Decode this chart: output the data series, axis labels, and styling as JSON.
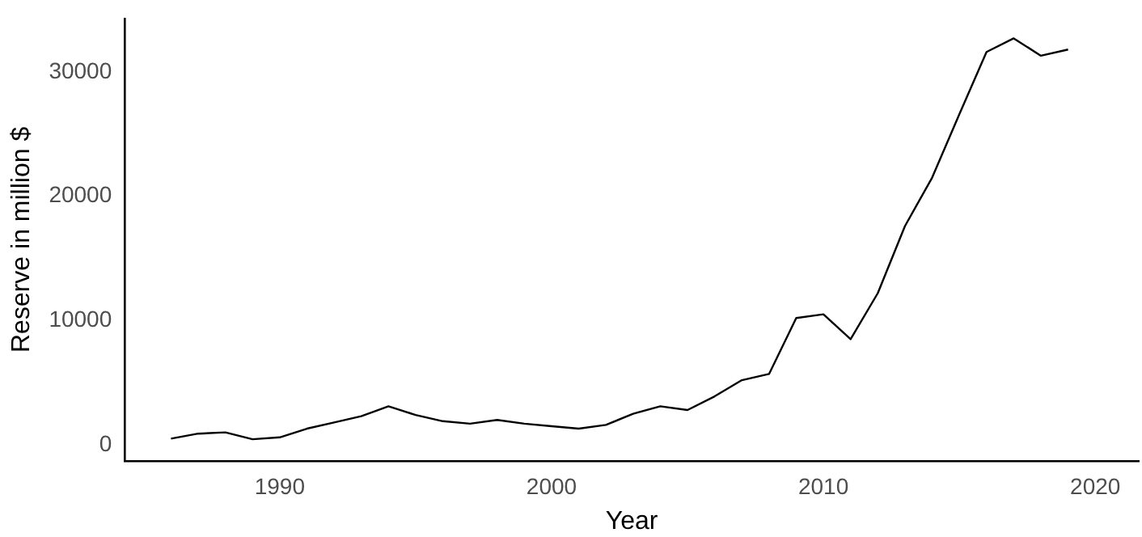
{
  "chart_data": {
    "type": "line",
    "xlabel": "Year",
    "ylabel": "Reserve in million $",
    "x": [
      1986,
      1987,
      1988,
      1989,
      1990,
      1991,
      1992,
      1993,
      1994,
      1995,
      1996,
      1997,
      1998,
      1999,
      2000,
      2001,
      2002,
      2003,
      2004,
      2005,
      2006,
      2007,
      2008,
      2009,
      2010,
      2011,
      2012,
      2013,
      2014,
      2015,
      2016,
      2017,
      2018,
      2019
    ],
    "series": [
      {
        "color": "#000000",
        "values": [
          500,
          900,
          1000,
          450,
          600,
          1300,
          1800,
          2300,
          3100,
          2400,
          1900,
          1700,
          2000,
          1700,
          1500,
          1300,
          1600,
          2500,
          3100,
          2800,
          3900,
          5200,
          5700,
          10200,
          10500,
          8500,
          12200,
          17600,
          21500,
          26600,
          31600,
          32700,
          31300,
          31800
        ]
      }
    ],
    "xlim": [
      1984.3,
      2021.6
    ],
    "xticks": [
      1990,
      2000,
      2010,
      2020
    ],
    "ylim": [
      -1300,
      34300
    ],
    "yticks": [
      0,
      10000,
      20000,
      30000
    ],
    "grid": false,
    "legend": false,
    "marker": "none",
    "line_style": "solid"
  }
}
